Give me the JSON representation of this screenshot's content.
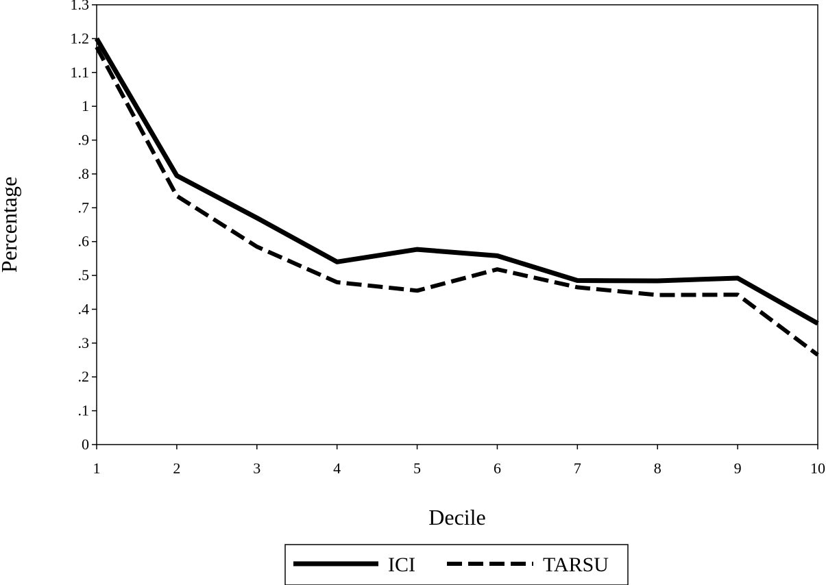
{
  "chart_data": {
    "type": "line",
    "xlabel": "Decile",
    "ylabel": "Percentage",
    "x": [
      1,
      2,
      3,
      4,
      5,
      6,
      7,
      8,
      9,
      10
    ],
    "xlim": [
      1,
      10
    ],
    "ylim": [
      0,
      1.3
    ],
    "xticks": [
      "1",
      "2",
      "3",
      "4",
      "5",
      "6",
      "7",
      "8",
      "9",
      "10"
    ],
    "yticks": [
      {
        "value": 0,
        "label": "0"
      },
      {
        "value": 0.1,
        "label": ".1"
      },
      {
        "value": 0.2,
        "label": ".2"
      },
      {
        "value": 0.3,
        "label": ".3"
      },
      {
        "value": 0.4,
        "label": ".4"
      },
      {
        "value": 0.5,
        "label": ".5"
      },
      {
        "value": 0.6,
        "label": ".6"
      },
      {
        "value": 0.7,
        "label": ".7"
      },
      {
        "value": 0.8,
        "label": ".8"
      },
      {
        "value": 0.9,
        "label": ".9"
      },
      {
        "value": 1.0,
        "label": "1"
      },
      {
        "value": 1.1,
        "label": "1.1"
      },
      {
        "value": 1.2,
        "label": "1.2"
      },
      {
        "value": 1.3,
        "label": "1.3"
      }
    ],
    "grid": false,
    "legend_position": "bottom-center",
    "series": [
      {
        "name": "ICI",
        "style": "solid",
        "color": "#000000",
        "values": [
          1.2,
          0.795,
          0.67,
          0.54,
          0.577,
          0.558,
          0.485,
          0.484,
          0.492,
          0.358
        ]
      },
      {
        "name": "TARSU",
        "style": "dashed",
        "color": "#000000",
        "values": [
          1.175,
          0.735,
          0.585,
          0.48,
          0.455,
          0.518,
          0.465,
          0.442,
          0.443,
          0.265
        ]
      }
    ]
  }
}
